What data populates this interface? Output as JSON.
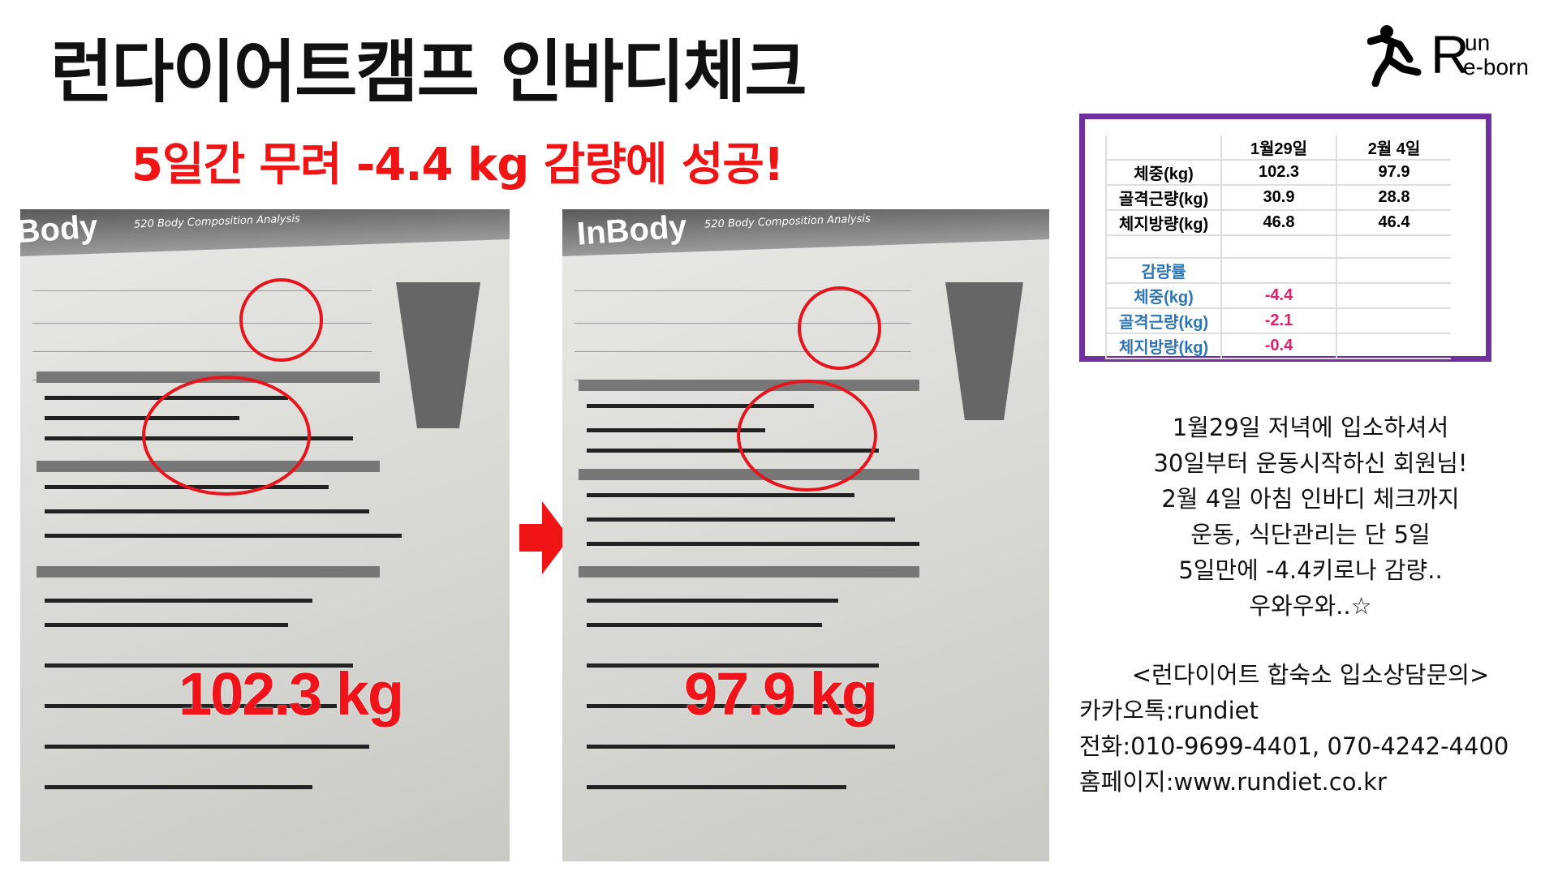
{
  "header": {
    "title": "런다이어트캠프 인바디체크",
    "subtitle": "5일간 무려 -4.4 kg 감량에 성공!"
  },
  "logo": {
    "r": "R",
    "un": "un",
    "eborn": "e-born",
    "icon": "running-person-icon"
  },
  "photos": [
    {
      "brand": "InBody",
      "subtitle": "520 Body Composition Analysis",
      "overlay": "102.3 kg"
    },
    {
      "brand": "InBody",
      "subtitle": "520 Body Composition Analysis",
      "overlay": "97.9 kg"
    }
  ],
  "arrow": {
    "icon": "arrow-right-icon",
    "color": "#f01414"
  },
  "table": {
    "columns": [
      "",
      "1월29일",
      "2월 4일"
    ],
    "rows": [
      [
        "체중(kg)",
        "102.3",
        "97.9"
      ],
      [
        "골격근량(kg)",
        "30.9",
        "28.8"
      ],
      [
        "체지방량(kg)",
        "46.8",
        "46.4"
      ],
      [
        "",
        "",
        ""
      ]
    ],
    "loss_header": "감량률",
    "loss_rows": [
      [
        "체중(kg)",
        "-4.4",
        ""
      ],
      [
        "골격근량(kg)",
        "-2.1",
        ""
      ],
      [
        "체지방량(kg)",
        "-0.4",
        ""
      ]
    ],
    "border_color": "#7030a0"
  },
  "story": [
    "1월29일 저녁에 입소하셔서",
    "30일부터 운동시작하신 회원님!",
    "2월 4일 아침 인바디 체크까지",
    "운동, 식단관리는 단 5일",
    "5일만에 -4.4키로나 감량..",
    "우와우와..☆"
  ],
  "contact": {
    "heading": "<런다이어트 합숙소 입소상담문의>",
    "kakao": "카카오톡:rundiet",
    "phone": "전화:010-9699-4401, 070-4242-4400",
    "homepage": "홈페이지:www.rundiet.co.kr"
  }
}
